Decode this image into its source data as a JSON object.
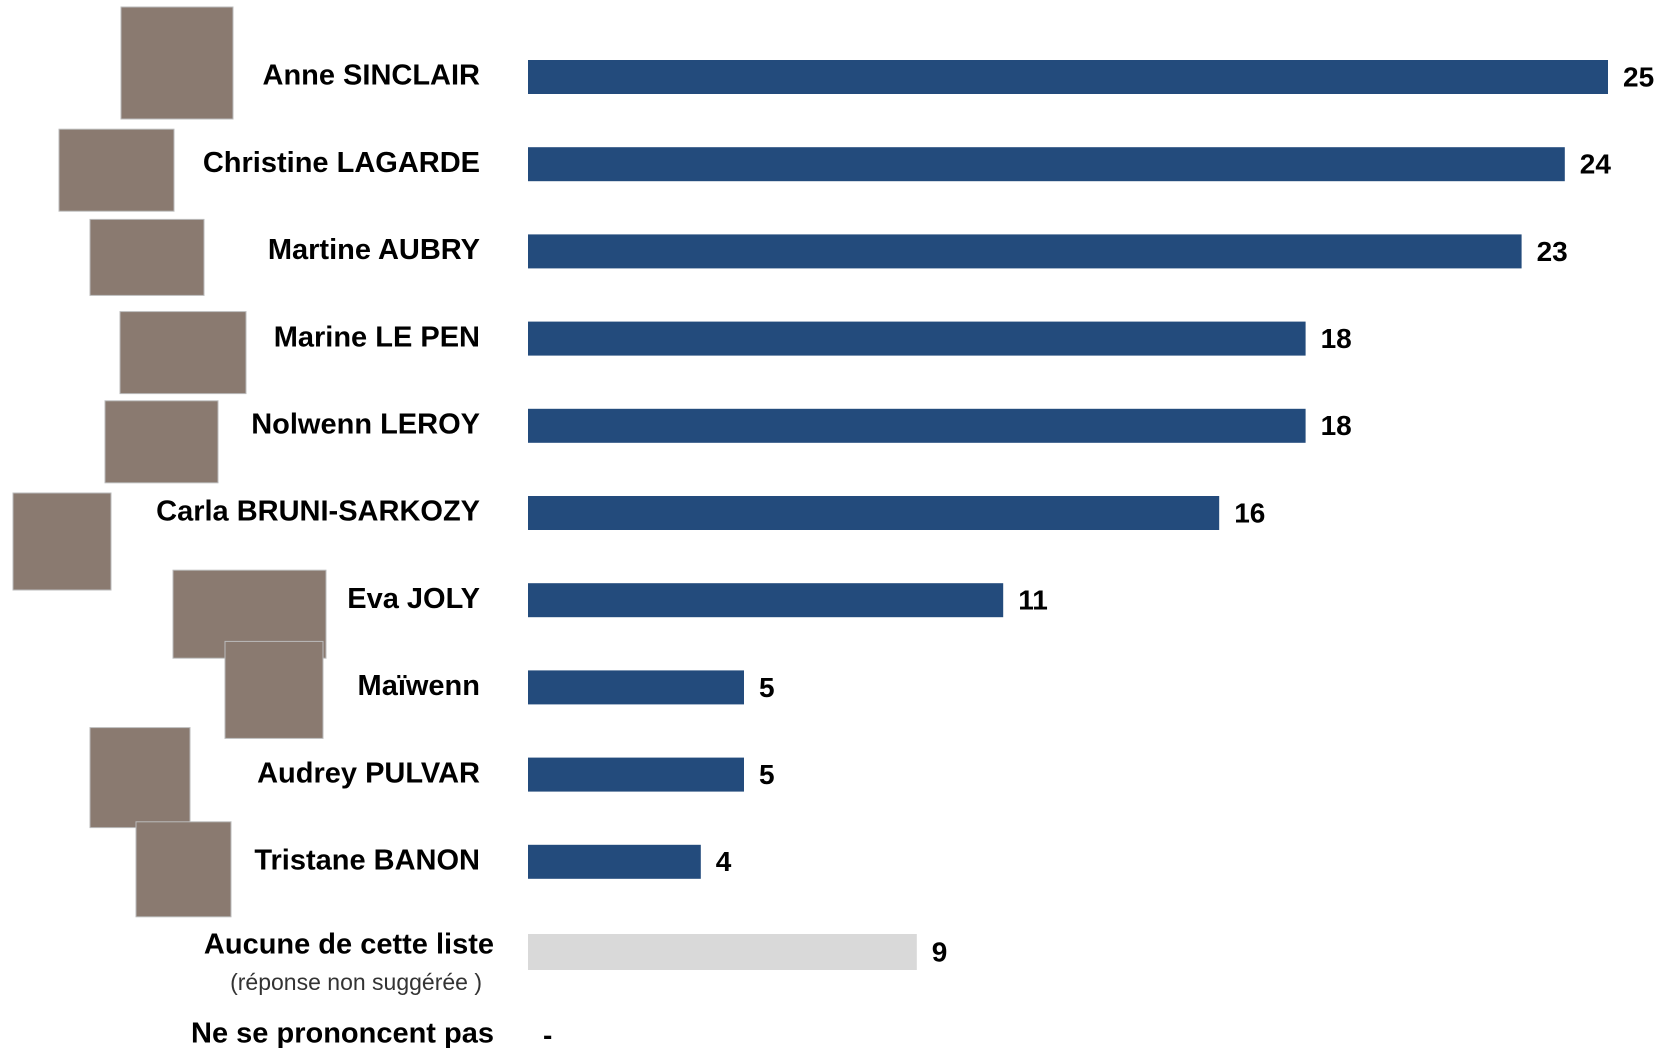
{
  "chart_data": {
    "type": "bar",
    "orientation": "horizontal",
    "categories": [
      "Anne SINCLAIR",
      "Christine LAGARDE",
      "Martine AUBRY",
      "Marine LE PEN",
      "Nolwenn LEROY",
      "Carla BRUNI-SARKOZY",
      "Eva JOLY",
      "Maïwenn",
      "Audrey PULVAR",
      "Tristane BANON",
      "Aucune de cette liste",
      "Ne se prononcent pas"
    ],
    "annotation": "(réponse non suggérée )",
    "values": [
      25,
      24,
      23,
      18,
      18,
      16,
      11,
      5,
      5,
      4,
      9,
      null
    ],
    "value_labels": [
      "25",
      "24",
      "23",
      "18",
      "18",
      "16",
      "11",
      "5",
      "5",
      "4",
      "9",
      "-"
    ],
    "colors": [
      "#234b7c",
      "#234b7c",
      "#234b7c",
      "#234b7c",
      "#234b7c",
      "#234b7c",
      "#234b7c",
      "#234b7c",
      "#234b7c",
      "#234b7c",
      "#d9d9d9",
      "#d9d9d9"
    ],
    "xlim": [
      0,
      25
    ]
  }
}
